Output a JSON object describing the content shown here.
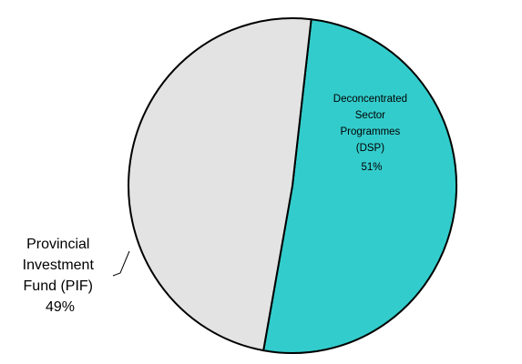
{
  "chart_data": {
    "type": "pie",
    "slices": [
      {
        "label_lines": [
          "Deconcentrated",
          "Sector",
          "Programmes",
          "(DSP)"
        ],
        "value_text": "51%",
        "value": 51,
        "color": "#33cccc"
      },
      {
        "label_lines": [
          "Provincial",
          "Investment",
          "Fund (PIF)"
        ],
        "value_text": "49%",
        "value": 49,
        "color": "#e3e3e3"
      }
    ]
  }
}
